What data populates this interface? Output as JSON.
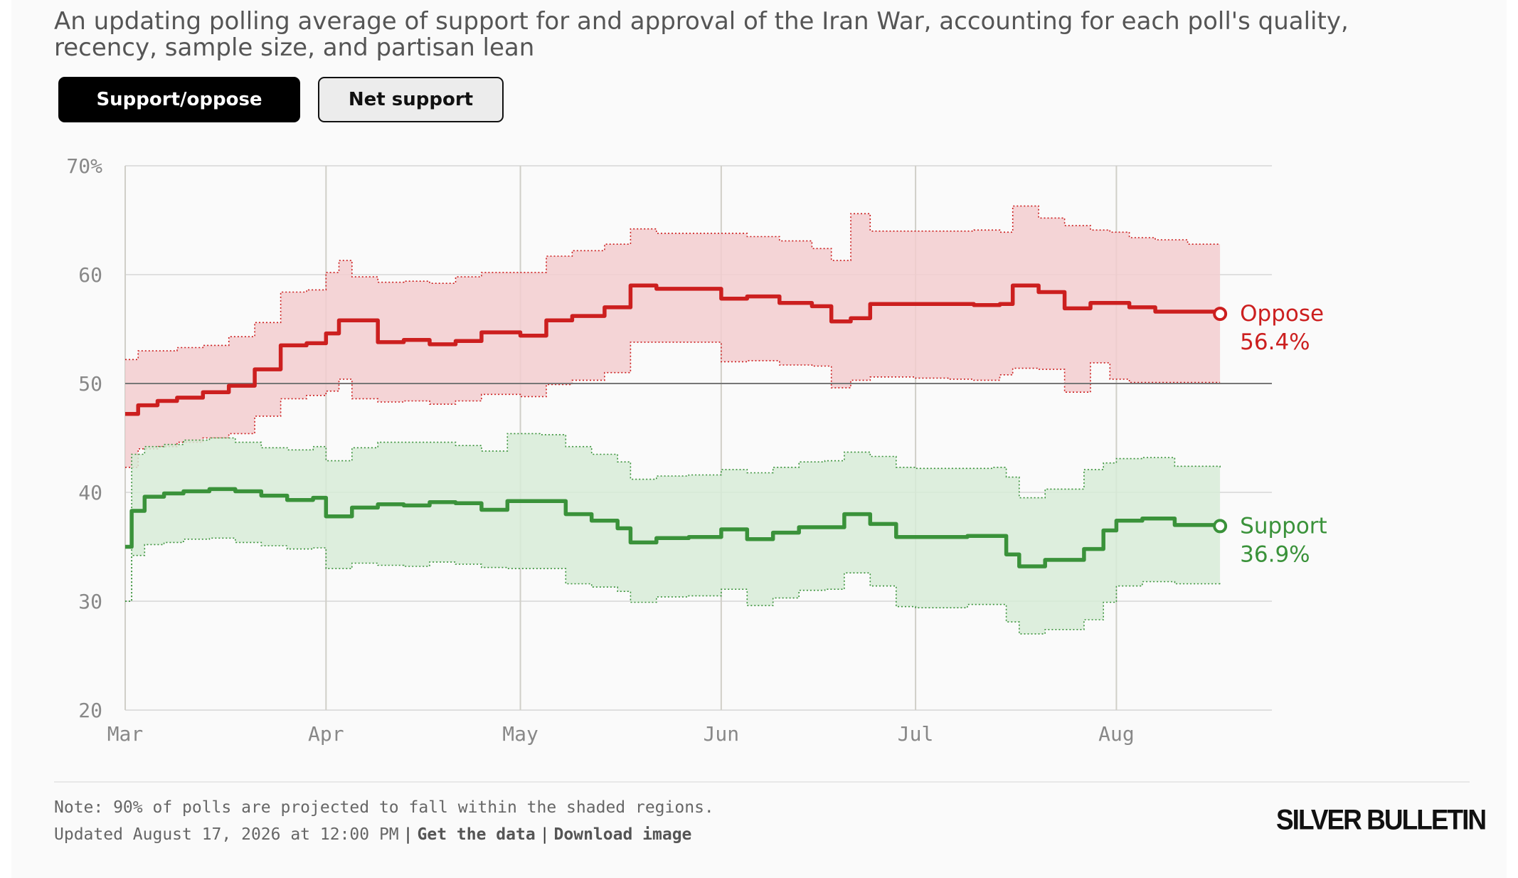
{
  "subtitle": "An updating polling average of support for and approval of the Iran War, accounting for each poll's quality, recency, sample size, and partisan lean",
  "toggle": {
    "active_label": "Support/oppose",
    "inactive_label": "Net support"
  },
  "footer": {
    "note": "Note: 90% of polls are projected to fall within the shaded regions.",
    "updated": "Updated August 17, 2026 at 12:00 PM",
    "get_data": "Get the data",
    "download": "Download image",
    "separator": "|",
    "brand": "SILVER BULLETIN"
  },
  "chart_data": {
    "type": "line",
    "title": "",
    "xlabel": "",
    "ylabel": "",
    "ylim": [
      20,
      70
    ],
    "xlim": [
      "2026-03-01",
      "2026-08-25"
    ],
    "y_ticks": [
      20,
      30,
      40,
      50,
      60,
      70
    ],
    "y_tick_labels": [
      "20",
      "30",
      "40",
      "50",
      "60",
      "70%"
    ],
    "x_ticks": [
      "2026-03-01",
      "2026-04-01",
      "2026-05-01",
      "2026-06-01",
      "2026-07-01",
      "2026-08-01"
    ],
    "x_tick_labels": [
      "Mar",
      "Apr",
      "May",
      "Jun",
      "Jul",
      "Aug"
    ],
    "reference_line": 50,
    "grid": true,
    "shaded_band": "90% interval",
    "series": [
      {
        "name": "Oppose",
        "end_label": "56.4%",
        "color": "#cc1f1f",
        "band_color": "#f2cdcf",
        "x": [
          "2026-03-01",
          "2026-03-03",
          "2026-03-06",
          "2026-03-09",
          "2026-03-13",
          "2026-03-17",
          "2026-03-21",
          "2026-03-25",
          "2026-03-29",
          "2026-04-01",
          "2026-04-03",
          "2026-04-05",
          "2026-04-09",
          "2026-04-13",
          "2026-04-17",
          "2026-04-21",
          "2026-04-25",
          "2026-05-01",
          "2026-05-05",
          "2026-05-09",
          "2026-05-14",
          "2026-05-18",
          "2026-05-22",
          "2026-05-28",
          "2026-06-01",
          "2026-06-05",
          "2026-06-10",
          "2026-06-15",
          "2026-06-18",
          "2026-06-21",
          "2026-06-24",
          "2026-06-28",
          "2026-07-01",
          "2026-07-06",
          "2026-07-10",
          "2026-07-14",
          "2026-07-16",
          "2026-07-20",
          "2026-07-24",
          "2026-07-28",
          "2026-07-31",
          "2026-08-03",
          "2026-08-07",
          "2026-08-12",
          "2026-08-17"
        ],
        "values": [
          47.2,
          48.0,
          48.4,
          48.7,
          49.2,
          49.8,
          51.3,
          53.5,
          53.7,
          54.6,
          55.8,
          55.8,
          53.8,
          54.0,
          53.6,
          53.9,
          54.7,
          54.4,
          55.8,
          56.2,
          57.0,
          59.0,
          58.7,
          58.7,
          57.8,
          58.0,
          57.4,
          57.1,
          55.7,
          56.0,
          57.3,
          57.3,
          57.3,
          57.3,
          57.2,
          57.3,
          59.0,
          58.4,
          56.9,
          57.4,
          57.4,
          57.0,
          56.6,
          56.6,
          56.4
        ],
        "upper": [
          52.2,
          53.0,
          53.0,
          53.3,
          53.5,
          54.3,
          55.6,
          58.4,
          58.6,
          60.2,
          61.3,
          59.8,
          59.3,
          59.4,
          59.2,
          59.8,
          60.2,
          60.2,
          61.7,
          62.2,
          62.8,
          64.2,
          63.8,
          63.8,
          63.8,
          63.5,
          63.1,
          62.4,
          61.3,
          65.6,
          64.0,
          64.0,
          64.0,
          64.0,
          64.1,
          63.9,
          66.3,
          65.2,
          64.5,
          64.1,
          63.9,
          63.4,
          63.2,
          62.8,
          62.8
        ],
        "lower": [
          42.3,
          44.0,
          44.2,
          44.6,
          45.0,
          45.4,
          47.0,
          48.6,
          48.9,
          49.3,
          50.4,
          48.6,
          48.3,
          48.4,
          48.1,
          48.4,
          49.0,
          48.8,
          49.9,
          50.3,
          51.0,
          53.8,
          53.8,
          53.8,
          52.0,
          52.1,
          51.7,
          51.6,
          49.6,
          50.3,
          50.6,
          50.6,
          50.5,
          50.4,
          50.3,
          50.8,
          51.4,
          51.3,
          49.2,
          51.9,
          50.4,
          50.1,
          50.1,
          50.1,
          50.1
        ]
      },
      {
        "name": "Support",
        "end_label": "36.9%",
        "color": "#3a923a",
        "band_color": "#d7ebd7",
        "x": [
          "2026-03-01",
          "2026-03-02",
          "2026-03-04",
          "2026-03-07",
          "2026-03-10",
          "2026-03-14",
          "2026-03-18",
          "2026-03-22",
          "2026-03-26",
          "2026-03-30",
          "2026-04-01",
          "2026-04-05",
          "2026-04-09",
          "2026-04-13",
          "2026-04-17",
          "2026-04-21",
          "2026-04-25",
          "2026-04-29",
          "2026-05-04",
          "2026-05-08",
          "2026-05-12",
          "2026-05-16",
          "2026-05-18",
          "2026-05-22",
          "2026-05-27",
          "2026-06-01",
          "2026-06-05",
          "2026-06-09",
          "2026-06-13",
          "2026-06-17",
          "2026-06-20",
          "2026-06-24",
          "2026-06-28",
          "2026-07-01",
          "2026-07-05",
          "2026-07-09",
          "2026-07-13",
          "2026-07-15",
          "2026-07-17",
          "2026-07-21",
          "2026-07-24",
          "2026-07-27",
          "2026-07-30",
          "2026-08-01",
          "2026-08-05",
          "2026-08-10",
          "2026-08-17"
        ],
        "values": [
          35.0,
          38.3,
          39.6,
          39.9,
          40.1,
          40.3,
          40.1,
          39.7,
          39.3,
          39.5,
          37.8,
          38.6,
          38.9,
          38.8,
          39.1,
          39.0,
          38.4,
          39.2,
          39.2,
          38.0,
          37.4,
          36.7,
          35.4,
          35.8,
          35.9,
          36.6,
          35.7,
          36.3,
          36.8,
          36.8,
          38.0,
          37.1,
          35.9,
          35.9,
          35.9,
          36.0,
          36.0,
          34.3,
          33.2,
          33.8,
          33.8,
          34.8,
          36.5,
          37.4,
          37.6,
          37.0,
          36.9
        ],
        "upper": [
          30.0,
          43.5,
          44.2,
          44.4,
          44.8,
          45.0,
          44.6,
          44.1,
          43.9,
          44.2,
          42.9,
          44.1,
          44.6,
          44.6,
          44.6,
          44.3,
          43.8,
          45.4,
          45.3,
          44.2,
          43.5,
          42.8,
          41.2,
          41.5,
          41.6,
          42.1,
          41.8,
          42.3,
          42.8,
          42.9,
          43.7,
          43.3,
          42.3,
          42.2,
          42.2,
          42.2,
          42.3,
          41.4,
          39.5,
          40.3,
          40.3,
          42.1,
          42.7,
          43.1,
          43.2,
          42.4,
          42.2
        ],
        "lower": [
          30.0,
          34.2,
          35.2,
          35.4,
          35.7,
          35.8,
          35.4,
          35.1,
          34.8,
          34.9,
          33.0,
          33.5,
          33.3,
          33.2,
          33.6,
          33.4,
          33.1,
          33.0,
          33.0,
          31.6,
          31.3,
          30.9,
          29.9,
          30.4,
          30.5,
          31.1,
          29.6,
          30.3,
          31.0,
          31.1,
          32.6,
          31.4,
          29.5,
          29.4,
          29.4,
          29.7,
          29.7,
          28.1,
          27.0,
          27.4,
          27.4,
          28.3,
          29.9,
          31.4,
          31.8,
          31.6,
          31.5
        ]
      }
    ]
  }
}
